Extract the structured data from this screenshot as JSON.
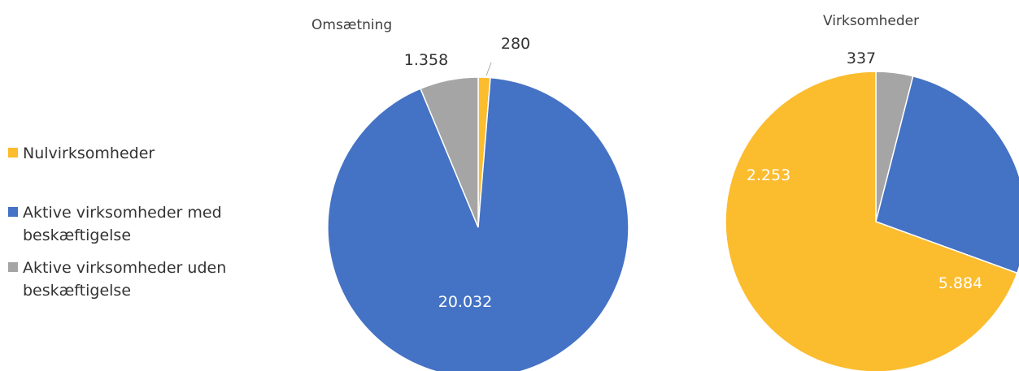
{
  "legend": [
    {
      "label": "Nulvirksomheder",
      "color": "#FBBC2E"
    },
    {
      "label": "Aktive virksomheder med beskæftigelse",
      "color": "#4472C4"
    },
    {
      "label": "Aktive virksomheder uden beskæftigelse",
      "color": "#A5A5A5"
    }
  ],
  "chart_data": [
    {
      "type": "pie",
      "title": "Omsætning",
      "categories": [
        "Nulvirksomheder",
        "Aktive virksomheder med beskæftigelse",
        "Aktive virksomheder uden beskæftigelse"
      ],
      "values": [
        280,
        20032,
        1358
      ],
      "data_labels": [
        "280",
        "20.032",
        "1.358"
      ],
      "colors": [
        "#FBBC2E",
        "#4472C4",
        "#A5A5A5"
      ],
      "legend_position": "left"
    },
    {
      "type": "pie",
      "title": "Virksomheder",
      "categories": [
        "Nulvirksomheder",
        "Aktive virksomheder med beskæftigelse",
        "Aktive virksomheder uden beskæftigelse"
      ],
      "values": [
        5884,
        2253,
        337
      ],
      "data_labels": [
        "5.884",
        "2.253",
        "337"
      ],
      "colors": [
        "#FBBC2E",
        "#4472C4",
        "#A5A5A5"
      ],
      "legend_position": "left"
    }
  ]
}
